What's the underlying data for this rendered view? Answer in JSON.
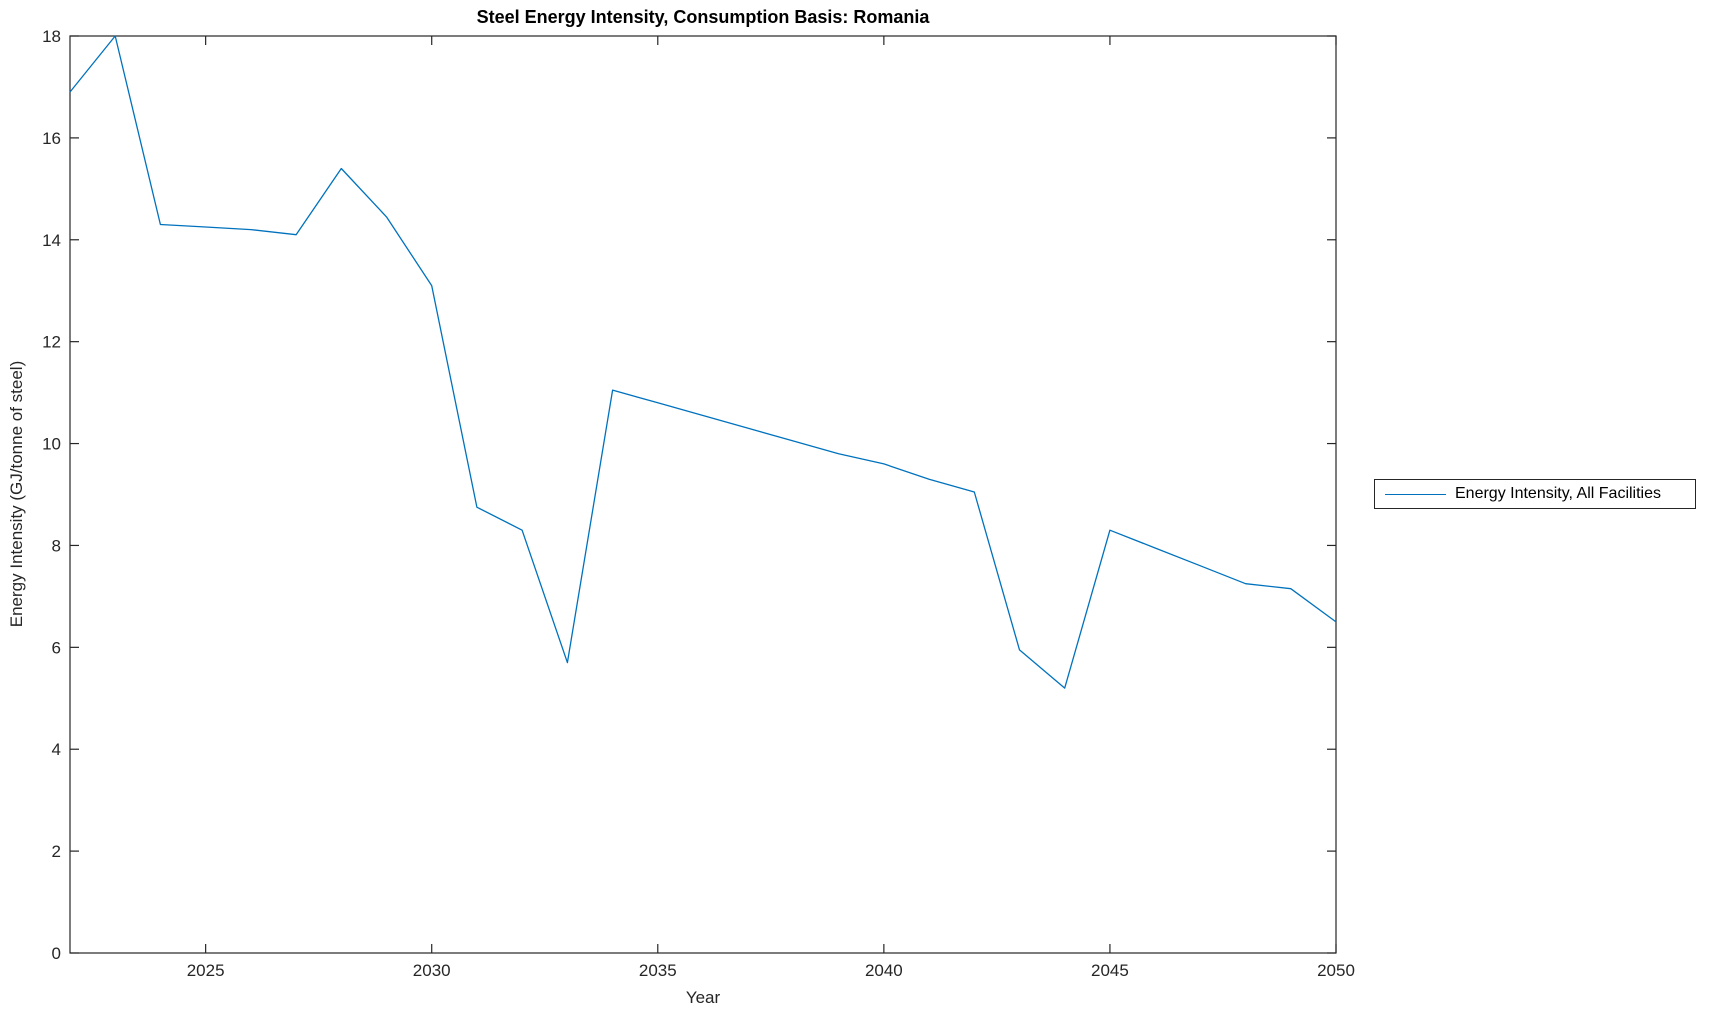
{
  "figure": {
    "background": "#ffffff",
    "axis_color": "#262626"
  },
  "chart_data": {
    "type": "line",
    "title": "Steel Energy Intensity, Consumption Basis: Romania",
    "xlabel": "Year",
    "ylabel": "Energy Intensity (GJ/tonne of steel)",
    "xlim": [
      2022,
      2050
    ],
    "ylim": [
      0,
      18
    ],
    "xticks": [
      2025,
      2030,
      2035,
      2040,
      2045,
      2050
    ],
    "yticks": [
      0,
      2,
      4,
      6,
      8,
      10,
      12,
      14,
      16,
      18
    ],
    "grid": false,
    "legend": {
      "position": "right-outside",
      "entries": [
        "Energy Intensity, All Facilities"
      ]
    },
    "series": [
      {
        "name": "Energy Intensity, All Facilities",
        "color": "#0072BD",
        "x": [
          2022,
          2023,
          2024,
          2025,
          2026,
          2027,
          2028,
          2029,
          2030,
          2031,
          2032,
          2033,
          2034,
          2035,
          2036,
          2037,
          2038,
          2039,
          2040,
          2041,
          2042,
          2043,
          2044,
          2045,
          2046,
          2047,
          2048,
          2049,
          2050
        ],
        "values": [
          16.9,
          18.0,
          14.3,
          14.25,
          14.2,
          14.1,
          15.4,
          14.45,
          13.1,
          8.75,
          8.3,
          5.7,
          11.05,
          10.8,
          10.55,
          10.3,
          10.05,
          9.8,
          9.6,
          9.3,
          9.05,
          5.95,
          5.2,
          8.3,
          7.95,
          7.6,
          7.25,
          7.15,
          6.5
        ]
      }
    ]
  },
  "legend_entry": "Energy Intensity, All Facilities"
}
